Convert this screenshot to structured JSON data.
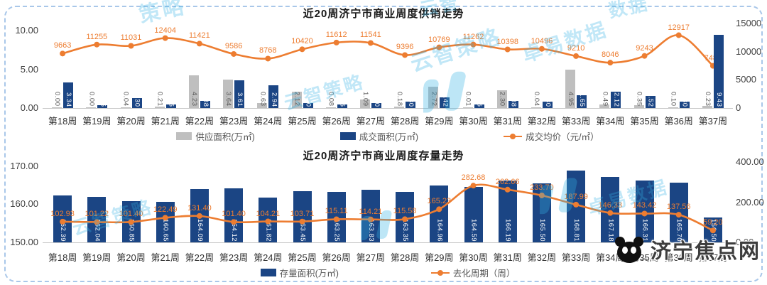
{
  "brand": {
    "text": "济宁焦点网"
  },
  "watermarks": {
    "color": "#35b2e5",
    "texts": [
      "云智策略",
      "卓易数据",
      "策略",
      "云智",
      "数据"
    ]
  },
  "chart_data": [
    {
      "type": "bar+line",
      "title": "近20周济宁市商业周度供销走势",
      "categories": [
        "第18周",
        "第19周",
        "第20周",
        "第21周",
        "第22周",
        "第23周",
        "第24周",
        "第25周",
        "第26周",
        "第27周",
        "第28周",
        "第29周",
        "第30周",
        "第31周",
        "第32周",
        "第33周",
        "第34周",
        "第35周",
        "第36周",
        "第37周"
      ],
      "left_axis": {
        "min": 0,
        "max": 10.92,
        "ticks": [
          "10.00",
          "5.00",
          "0.00"
        ]
      },
      "right_axis": {
        "min": 0,
        "max": 15000,
        "ticks": [
          "15000",
          "10000",
          "5000",
          "0"
        ]
      },
      "series": [
        {
          "name": "供应面积(万㎡)",
          "type": "bar",
          "axis": "left",
          "color": "#bfbfbf",
          "label_style": "outside-gray",
          "values": [
            0.0,
            0.0,
            0.04,
            0.21,
            4.23,
            3.64,
            0.63,
            2.12,
            0.08,
            1.09,
            0.18,
            2.72,
            0.01,
            2.3,
            0.04,
            4.95,
            0.49,
            0.35,
            0.1,
            0.23
          ]
        },
        {
          "name": "成交面积(万㎡)",
          "type": "bar",
          "axis": "left",
          "color": "#1b4584",
          "label_style": "inside-white",
          "values": [
            3.34,
            0.35,
            1.3,
            0.45,
            0.88,
            3.61,
            2.94,
            0.6,
            0.45,
            0.6,
            0.8,
            1.42,
            0.45,
            0.88,
            0.8,
            1.65,
            2.12,
            1.52,
            0.8,
            9.43
          ]
        },
        {
          "name": "成交均价（元/㎡）",
          "type": "line",
          "axis": "right",
          "color": "#ed7d31",
          "values": [
            9663,
            11255,
            11031,
            12404,
            11421,
            9586,
            8768,
            10420,
            11612,
            11541,
            9396,
            10769,
            11262,
            10398,
            10496,
            9210,
            8046,
            9243,
            12917,
            7480
          ]
        }
      ],
      "legend_position": "bottom",
      "grid": false
    },
    {
      "type": "bar+line",
      "title": "近20周济宁市商业周度存量走势",
      "categories": [
        "第18周",
        "第19周",
        "第20周",
        "第21周",
        "第22周",
        "第23周",
        "第24周",
        "第25周",
        "第26周",
        "第27周",
        "第28周",
        "第29周",
        "第30周",
        "第31周",
        "第32周",
        "第33周",
        "第34周",
        "第35周",
        "第36周",
        "第37周"
      ],
      "left_axis": {
        "min": 150,
        "max": 171.1,
        "ticks": [
          "170.00",
          "160.00",
          "150.00"
        ]
      },
      "right_axis": {
        "min": 0,
        "max": 400,
        "ticks": [
          "400.00",
          "200.00",
          "0.00"
        ]
      },
      "series": [
        {
          "name": "存量面积(万㎡)",
          "type": "bar",
          "axis": "left",
          "color": "#1b4584",
          "label_style": "inside-white",
          "values": [
            162.39,
            162.04,
            160.85,
            160.65,
            164.09,
            164.12,
            161.82,
            163.45,
            163.25,
            163.83,
            163.35,
            164.96,
            164.59,
            166.19,
            165.5,
            168.81,
            167.18,
            166.31,
            165.7,
            156.5
          ]
        },
        {
          "name": "去化周期（周）",
          "type": "line",
          "axis": "right",
          "color": "#ed7d31",
          "values": [
            102.93,
            101.22,
            101.4,
            122.49,
            131.4,
            101.4,
            104.21,
            103.71,
            115.11,
            114.21,
            115.58,
            165.23,
            282.68,
            262.66,
            233.7,
            187.99,
            146.33,
            143.42,
            137.56,
            59.2
          ]
        }
      ],
      "legend_position": "bottom",
      "grid": false
    }
  ]
}
